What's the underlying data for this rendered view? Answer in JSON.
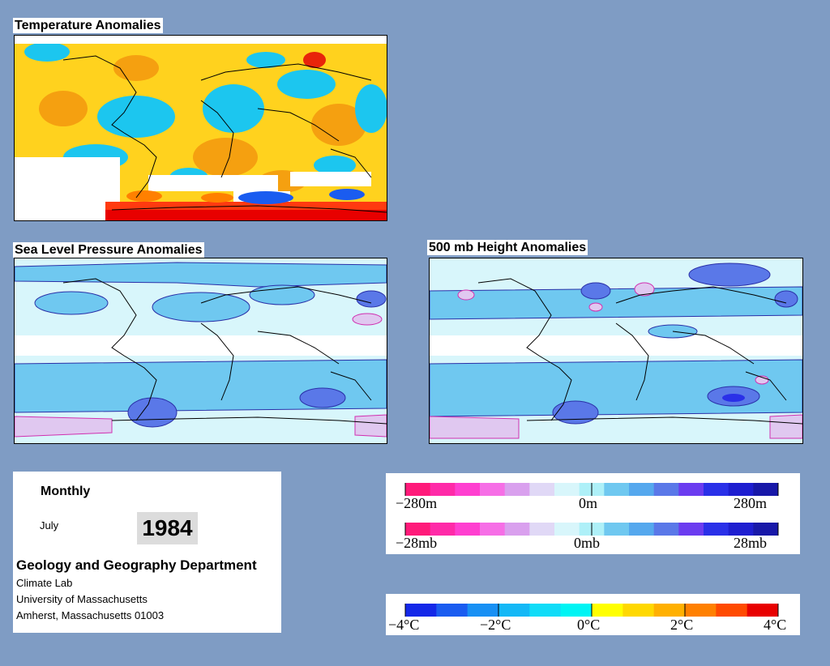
{
  "maps": {
    "temperature": {
      "title": "Temperature Anomalies"
    },
    "slp": {
      "title": "Sea Level Pressure Anomalies"
    },
    "height500": {
      "title": "500 mb Height Anomalies"
    }
  },
  "info": {
    "period": "Monthly",
    "month": "July",
    "year": "1984",
    "department": "Geology and Geography Department",
    "lines": [
      "Climate Lab",
      "University of Massachusetts",
      "Amherst, Massachusetts 01003"
    ]
  },
  "legends": {
    "height": {
      "min_label": "−280m",
      "mid_label": "0m",
      "max_label": "280m"
    },
    "pressure": {
      "min_label": "−28mb",
      "mid_label": "0mb",
      "max_label": "28mb"
    },
    "temperature": {
      "labels": [
        "−4°C",
        "−2°C",
        "0°C",
        "2°C",
        "4°C"
      ]
    }
  },
  "colors": {
    "background": "#7f9cc4",
    "divergent_scale": [
      "#ff1a7a",
      "#ff2aa8",
      "#ff3fd0",
      "#f66ee6",
      "#d9a0ee",
      "#e0d8f6",
      "#d8f6fb",
      "#aef0f8",
      "#6fc8f0",
      "#55a8ee",
      "#5a78e8",
      "#6b3cf0",
      "#2a30e8",
      "#1e1ed0",
      "#1818a8"
    ],
    "temperature_scale": [
      "#1428e8",
      "#1a5cf0",
      "#1890f4",
      "#14b8f6",
      "#10dcf8",
      "#00f4f4",
      "#ffff00",
      "#ffd800",
      "#ffb000",
      "#ff8000",
      "#ff4a00",
      "#e80000"
    ]
  }
}
